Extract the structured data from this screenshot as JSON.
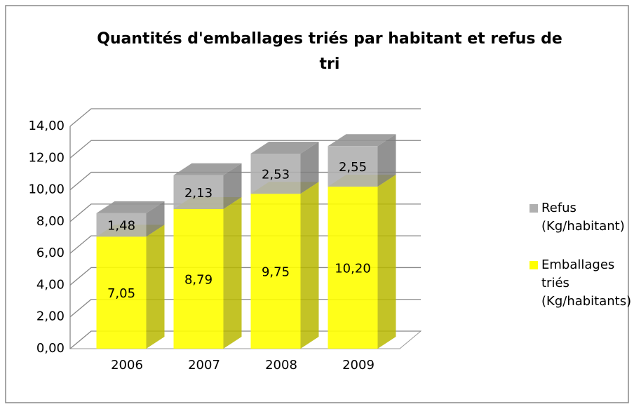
{
  "chart_data": {
    "type": "bar",
    "stacked": true,
    "title": "Quantités d'emballages triés par habitant et  refus de tri",
    "categories": [
      "2006",
      "2007",
      "2008",
      "2009"
    ],
    "series": [
      {
        "name": "Emballages triés (Kg/habitants)",
        "color": "#ffff00",
        "values": [
          7.05,
          8.79,
          9.75,
          10.2
        ],
        "value_labels": [
          "7,05",
          "8,79",
          "9,75",
          "10,20"
        ]
      },
      {
        "name": "Refus (Kg/habitant)",
        "color": "#b0b0b0",
        "values": [
          1.48,
          2.13,
          2.53,
          2.55
        ],
        "value_labels": [
          "1,48",
          "2,13",
          "2,53",
          "2,55"
        ]
      }
    ],
    "ylim": [
      0,
      14
    ],
    "yticks": [
      {
        "value": 0,
        "label": "0,00"
      },
      {
        "value": 2,
        "label": "2,00"
      },
      {
        "value": 4,
        "label": "4,00"
      },
      {
        "value": 6,
        "label": "6,00"
      },
      {
        "value": 8,
        "label": "8,00"
      },
      {
        "value": 10,
        "label": "10,00"
      },
      {
        "value": 12,
        "label": "12,00"
      },
      {
        "value": 14,
        "label": "14,00"
      }
    ],
    "grid": true,
    "legend": "right"
  }
}
